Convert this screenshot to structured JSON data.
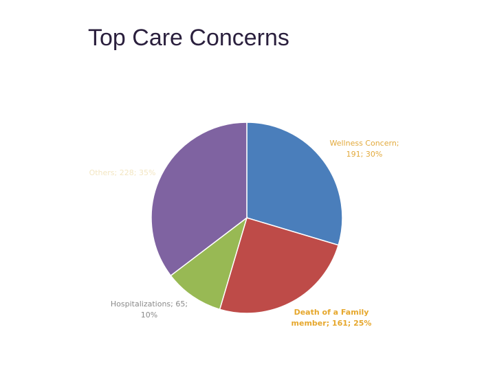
{
  "title": "Top Care Concerns",
  "chart_data": {
    "type": "pie",
    "title": "Top Care Concerns",
    "start_angle_deg": 0,
    "direction": "clockwise",
    "slices": [
      {
        "label": "Wellness Concern",
        "value": 191,
        "percent": "30%",
        "color": "#4a7ebb",
        "text_lines": [
          "Wellness Concern;",
          "191; 30%"
        ],
        "label_color": "#e2a93b",
        "label_weight": "normal"
      },
      {
        "label": "Death of a Family member",
        "value": 161,
        "percent": "25%",
        "color": "#be4b48",
        "text_lines": [
          "Death of a Family",
          "member; 161; 25%"
        ],
        "label_color": "#e6a72c",
        "label_weight": "bold"
      },
      {
        "label": "Hospitalizations",
        "value": 65,
        "percent": "10%",
        "color": "#98b954",
        "text_lines": [
          "Hospitalizations; 65;",
          "10%"
        ],
        "label_color": "#8a8a8a",
        "label_weight": "normal"
      },
      {
        "label": "Others",
        "value": 228,
        "percent": "35%",
        "color": "#7f63a1",
        "text_lines": [
          "Others; 228; 35%"
        ],
        "label_color": "#f3e6c2",
        "label_weight": "normal"
      }
    ]
  }
}
